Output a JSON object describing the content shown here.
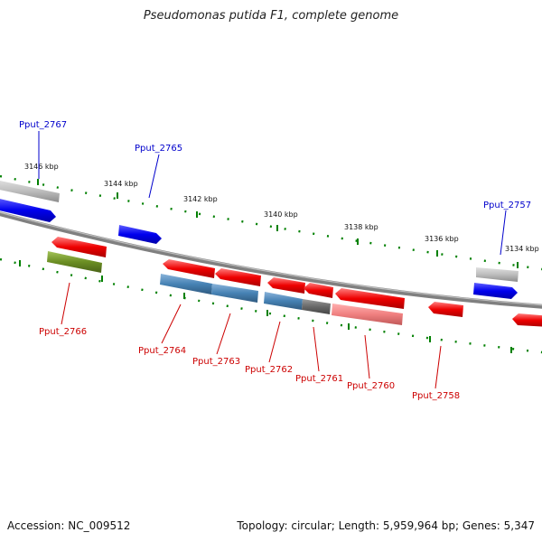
{
  "title": "Pseudomonas putida F1, complete genome",
  "footer": {
    "accession": "Accession: NC_009512",
    "summary": "Topology: circular; Length: 5,959,964 bp; Genes: 5,347"
  },
  "ticks": [
    {
      "label": "3146 kbp",
      "kbp": 3146
    },
    {
      "label": "3144 kbp",
      "kbp": 3144
    },
    {
      "label": "3142 kbp",
      "kbp": 3142
    },
    {
      "label": "3140 kbp",
      "kbp": 3140
    },
    {
      "label": "3138 kbp",
      "kbp": 3138
    },
    {
      "label": "3136 kbp",
      "kbp": 3136
    },
    {
      "label": "3134 kbp",
      "kbp": 3134
    }
  ],
  "colors": {
    "forward_label": "#0000cc",
    "reverse_label": "#cc0000",
    "blue": "#0000ee",
    "red": "#ee0000",
    "steel": "#4682b4",
    "olive": "#6b8e23",
    "gray": "#a9a9a9",
    "darkgray": "#696969",
    "pink": "#f08080",
    "tick_green": "#008000",
    "backbone": "#808080"
  },
  "genes": [
    {
      "label": "Pput_2767",
      "strand": "forward"
    },
    {
      "label": "Pput_2765",
      "strand": "forward"
    },
    {
      "label": "Pput_2757",
      "strand": "forward"
    },
    {
      "label": "Pput_2766",
      "strand": "reverse"
    },
    {
      "label": "Pput_2764",
      "strand": "reverse"
    },
    {
      "label": "Pput_2763",
      "strand": "reverse"
    },
    {
      "label": "Pput_2762",
      "strand": "reverse"
    },
    {
      "label": "Pput_2761",
      "strand": "reverse"
    },
    {
      "label": "Pput_2760",
      "strand": "reverse"
    },
    {
      "label": "Pput_2758",
      "strand": "reverse"
    }
  ]
}
